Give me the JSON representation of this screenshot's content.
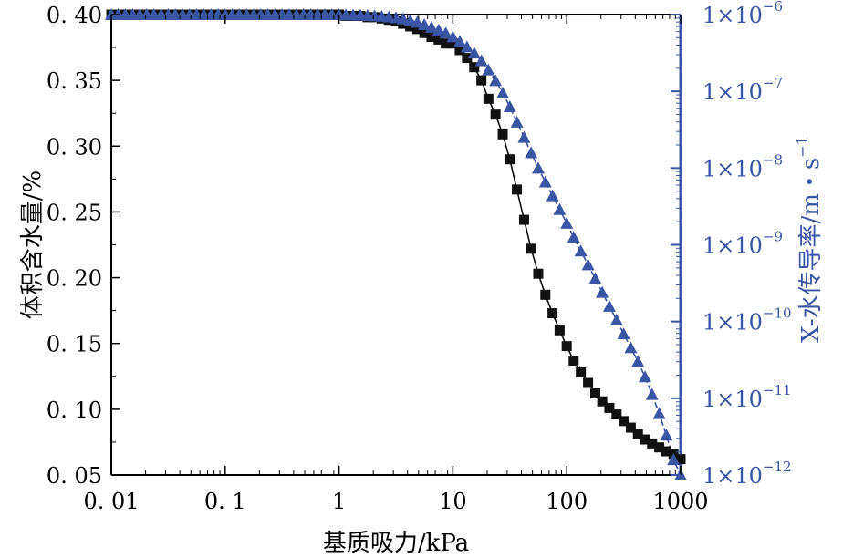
{
  "chart_data": {
    "type": "scatter",
    "xlabel": "基质吸力/kPa",
    "ylabel_left": "体积含水量/%",
    "ylabel_right_main": "X-水传导率/m・s",
    "ylabel_right_sup": "−1",
    "x_scale": "log",
    "xlim": [
      0.01,
      1000
    ],
    "x_ticks": [
      {
        "value": 0.01,
        "label": "0. 01"
      },
      {
        "value": 0.1,
        "label": "0. 1"
      },
      {
        "value": 1,
        "label": "1"
      },
      {
        "value": 10,
        "label": "10"
      },
      {
        "value": 100,
        "label": "100"
      },
      {
        "value": 1000,
        "label": "1000"
      }
    ],
    "ylim_left": [
      0.05,
      0.4
    ],
    "y_ticks_left": [
      {
        "value": 0.4,
        "label": "0. 40"
      },
      {
        "value": 0.35,
        "label": "0. 35"
      },
      {
        "value": 0.3,
        "label": "0. 30"
      },
      {
        "value": 0.25,
        "label": "0. 25"
      },
      {
        "value": 0.2,
        "label": "0. 20"
      },
      {
        "value": 0.15,
        "label": "0. 15"
      },
      {
        "value": 0.1,
        "label": "0. 10"
      },
      {
        "value": 0.05,
        "label": "0. 05"
      }
    ],
    "right_axis_scale": "log",
    "ylim_right_exp": [
      -12,
      -6
    ],
    "y_ticks_right": [
      {
        "exp": -6,
        "base": "1×10",
        "sup": "−6"
      },
      {
        "exp": -7,
        "base": "1×10",
        "sup": "−7"
      },
      {
        "exp": -8,
        "base": "1×10",
        "sup": "−8"
      },
      {
        "exp": -9,
        "base": "1×10",
        "sup": "−9"
      },
      {
        "exp": -10,
        "base": "1×10",
        "sup": "−10"
      },
      {
        "exp": -11,
        "base": "1×10",
        "sup": "−11"
      },
      {
        "exp": -12,
        "base": "1×10",
        "sup": "−12"
      }
    ],
    "colors": {
      "water_content": "#111111",
      "conductivity": "#3a55a4",
      "axis_left": "#000000",
      "axis_right": "#3a55a4"
    },
    "series": [
      {
        "marker": "square",
        "axis": "left",
        "x": [
          0.01,
          0.0115,
          0.0133,
          0.0154,
          0.0178,
          0.0205,
          0.0237,
          0.0274,
          0.0316,
          0.0365,
          0.0422,
          0.0487,
          0.0562,
          0.0649,
          0.075,
          0.0866,
          0.1,
          0.115,
          0.133,
          0.154,
          0.178,
          0.205,
          0.237,
          0.274,
          0.316,
          0.365,
          0.422,
          0.487,
          0.562,
          0.649,
          0.75,
          0.866,
          1.0,
          1.15,
          1.33,
          1.54,
          1.78,
          2.05,
          2.37,
          2.74,
          3.16,
          3.65,
          4.22,
          4.87,
          5.62,
          6.49,
          7.5,
          8.66,
          10,
          11.5,
          13.3,
          15.4,
          17.8,
          20.5,
          23.7,
          27.4,
          31.6,
          36.5,
          42.2,
          48.7,
          56.2,
          64.9,
          75,
          86.6,
          100,
          115,
          133,
          154,
          178,
          205,
          237,
          274,
          316,
          365,
          422,
          487,
          562,
          649,
          750,
          866,
          1000
        ],
        "y": [
          0.4,
          0.4,
          0.4,
          0.4,
          0.4,
          0.4,
          0.4,
          0.4,
          0.4,
          0.4,
          0.4,
          0.4,
          0.4,
          0.4,
          0.4,
          0.4,
          0.4,
          0.4,
          0.4,
          0.4,
          0.4,
          0.4,
          0.4,
          0.4,
          0.4,
          0.4,
          0.4,
          0.4,
          0.4,
          0.4,
          0.4,
          0.4,
          0.4,
          0.399,
          0.399,
          0.399,
          0.398,
          0.398,
          0.397,
          0.396,
          0.395,
          0.393,
          0.391,
          0.389,
          0.386,
          0.383,
          0.381,
          0.378,
          0.378,
          0.373,
          0.367,
          0.36,
          0.35,
          0.336,
          0.324,
          0.309,
          0.29,
          0.267,
          0.244,
          0.222,
          0.203,
          0.187,
          0.173,
          0.16,
          0.148,
          0.137,
          0.128,
          0.12,
          0.112,
          0.106,
          0.101,
          0.096,
          0.091,
          0.086,
          0.081,
          0.077,
          0.074,
          0.071,
          0.068,
          0.066,
          0.062
        ]
      },
      {
        "marker": "triangle",
        "axis": "right",
        "x": [
          0.01,
          0.0115,
          0.0133,
          0.0154,
          0.0178,
          0.0205,
          0.0237,
          0.0274,
          0.0316,
          0.0365,
          0.0422,
          0.0487,
          0.0562,
          0.0649,
          0.075,
          0.0866,
          0.1,
          0.115,
          0.133,
          0.154,
          0.178,
          0.205,
          0.237,
          0.274,
          0.316,
          0.365,
          0.422,
          0.487,
          0.562,
          0.649,
          0.75,
          0.866,
          1.0,
          1.15,
          1.33,
          1.54,
          1.78,
          2.05,
          2.37,
          2.74,
          3.16,
          3.65,
          4.22,
          4.87,
          5.62,
          6.49,
          7.5,
          8.66,
          10,
          11.5,
          13.3,
          15.4,
          17.8,
          20.5,
          23.7,
          27.4,
          31.6,
          36.5,
          42.2,
          48.7,
          56.2,
          64.9,
          75,
          86.6,
          100,
          115,
          133,
          154,
          178,
          205,
          237,
          274,
          316,
          365,
          422,
          487,
          562,
          649,
          750,
          866,
          1000
        ],
        "y_exp": [
          -6,
          -6,
          -6,
          -6,
          -6,
          -6,
          -6,
          -6,
          -6,
          -6,
          -6,
          -6,
          -6,
          -6,
          -6,
          -6,
          -6,
          -6,
          -6,
          -6,
          -6,
          -6,
          -6,
          -6,
          -6,
          -6,
          -6,
          -6,
          -6,
          -6,
          -6,
          -6,
          -6,
          -6.004,
          -6.006,
          -6.008,
          -6.012,
          -6.016,
          -6.022,
          -6.03,
          -6.04,
          -6.055,
          -6.075,
          -6.1,
          -6.13,
          -6.165,
          -6.2,
          -6.24,
          -6.29,
          -6.35,
          -6.42,
          -6.5,
          -6.6,
          -6.72,
          -6.86,
          -7.02,
          -7.2,
          -7.4,
          -7.6,
          -7.8,
          -8.0,
          -8.18,
          -8.36,
          -8.54,
          -8.72,
          -8.9,
          -9.08,
          -9.26,
          -9.44,
          -9.62,
          -9.8,
          -9.98,
          -10.16,
          -10.34,
          -10.52,
          -10.72,
          -10.95,
          -11.2,
          -11.48,
          -11.8,
          -12.0
        ]
      }
    ]
  }
}
